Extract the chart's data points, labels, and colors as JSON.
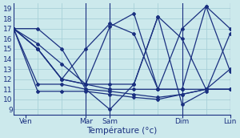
{
  "bg_color": "#cce9ec",
  "line_color": "#1a3080",
  "grid_color": "#a8d0d8",
  "xlabel": "Température (°c)",
  "ylim": [
    8.5,
    19.5
  ],
  "yticks": [
    9,
    10,
    11,
    12,
    13,
    14,
    15,
    16,
    17,
    18,
    19
  ],
  "xlim": [
    0,
    9
  ],
  "xtick_pos": [
    0.5,
    3,
    4,
    7,
    9
  ],
  "xtick_labels": [
    "Ven",
    "Mar",
    "Sam",
    "Dim",
    "Lun"
  ],
  "vlines": [
    0,
    3,
    4,
    7,
    9
  ],
  "lines": [
    {
      "x": [
        0,
        1,
        2,
        3,
        3,
        4,
        4,
        5,
        6,
        7,
        7,
        8,
        9
      ],
      "y": [
        17.0,
        15.5,
        13.5,
        11.5,
        11.5,
        11.0,
        11.0,
        11.0,
        11.0,
        11.0,
        11.0,
        11.0,
        11.0
      ]
    },
    {
      "x": [
        0,
        1,
        2,
        3,
        4,
        5,
        6,
        7,
        8,
        9
      ],
      "y": [
        17.0,
        11.5,
        11.5,
        11.0,
        10.8,
        10.5,
        10.2,
        10.5,
        11.0,
        11.0
      ]
    },
    {
      "x": [
        0,
        1,
        2,
        3,
        4,
        5,
        6,
        7,
        8,
        9
      ],
      "y": [
        17.0,
        10.8,
        10.8,
        10.8,
        10.5,
        10.2,
        10.0,
        10.5,
        11.0,
        11.0
      ]
    },
    {
      "x": [
        0,
        1,
        2,
        3,
        4,
        5,
        6,
        7,
        8,
        9
      ],
      "y": [
        17.0,
        17.0,
        15.0,
        11.0,
        9.0,
        11.5,
        18.2,
        16.0,
        11.0,
        13.0
      ]
    },
    {
      "x": [
        0,
        1,
        2,
        3,
        4,
        5,
        6,
        7,
        8,
        9
      ],
      "y": [
        17.0,
        15.0,
        12.0,
        11.5,
        11.5,
        11.5,
        18.2,
        9.5,
        10.8,
        16.5
      ]
    },
    {
      "x": [
        0,
        1,
        2,
        3,
        4,
        5,
        6,
        7,
        8,
        9
      ],
      "y": [
        17.0,
        15.0,
        12.0,
        11.5,
        17.2,
        18.5,
        11.0,
        11.0,
        19.2,
        17.0
      ]
    },
    {
      "x": [
        0,
        1,
        2,
        3,
        4,
        5,
        6,
        7,
        8,
        9
      ],
      "y": [
        17.0,
        15.0,
        12.0,
        15.0,
        17.5,
        16.5,
        11.0,
        17.0,
        19.2,
        12.8
      ]
    }
  ]
}
